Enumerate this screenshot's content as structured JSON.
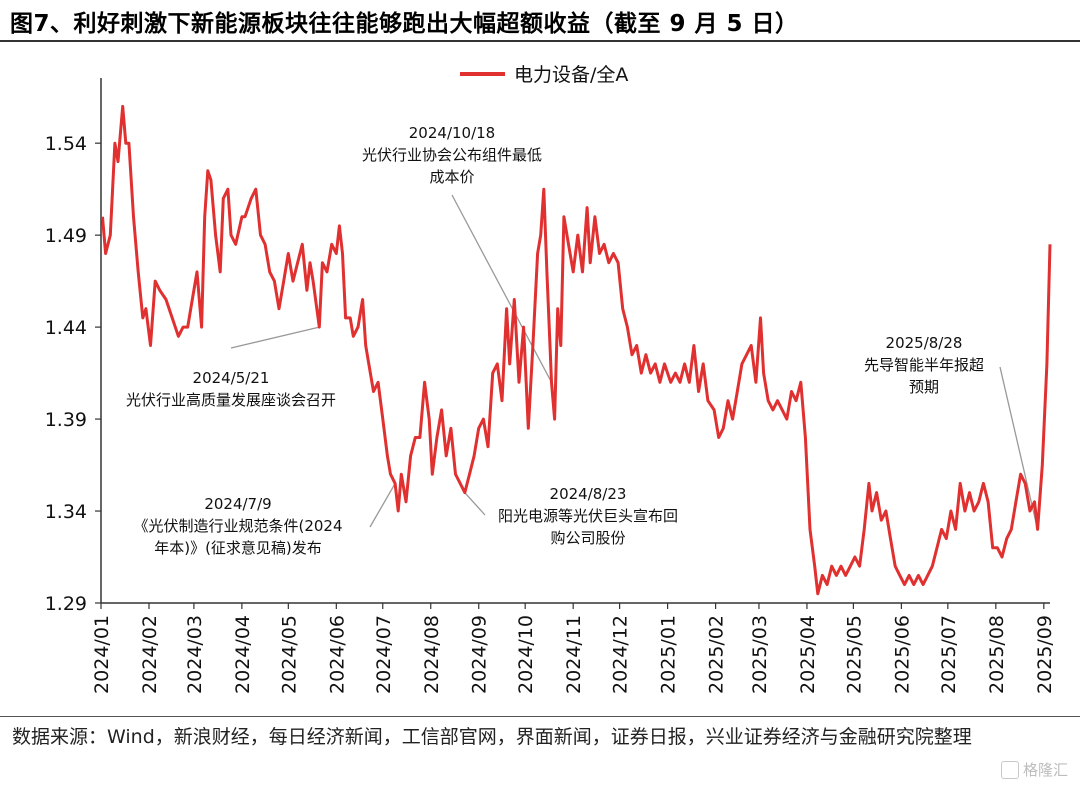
{
  "title": "图7、利好刺激下新能源板块往往能够跑出大幅超额收益（截至 9 月 5 日）",
  "source": "数据来源：Wind，新浪财经，每日经济新闻，工信部官网，界面新闻，证券日报，兴业证券经济与金融研究院整理",
  "watermark": "格隆汇",
  "chart_data": {
    "type": "line",
    "series": [
      {
        "name": "电力设备/全A",
        "color": "#e03030",
        "points": [
          [
            "2024-01-02",
            1.5
          ],
          [
            "2024-01-04",
            1.48
          ],
          [
            "2024-01-07",
            1.49
          ],
          [
            "2024-01-10",
            1.54
          ],
          [
            "2024-01-12",
            1.53
          ],
          [
            "2024-01-15",
            1.56
          ],
          [
            "2024-01-17",
            1.54
          ],
          [
            "2024-01-19",
            1.54
          ],
          [
            "2024-01-22",
            1.5
          ],
          [
            "2024-01-25",
            1.47
          ],
          [
            "2024-01-28",
            1.445
          ],
          [
            "2024-01-30",
            1.45
          ],
          [
            "2024-02-02",
            1.43
          ],
          [
            "2024-02-05",
            1.465
          ],
          [
            "2024-02-08",
            1.46
          ],
          [
            "2024-02-12",
            1.455
          ],
          [
            "2024-02-16",
            1.445
          ],
          [
            "2024-02-20",
            1.435
          ],
          [
            "2024-02-23",
            1.44
          ],
          [
            "2024-02-26",
            1.44
          ],
          [
            "2024-02-29",
            1.455
          ],
          [
            "2024-03-03",
            1.47
          ],
          [
            "2024-03-06",
            1.44
          ],
          [
            "2024-03-08",
            1.5
          ],
          [
            "2024-03-10",
            1.525
          ],
          [
            "2024-03-12",
            1.52
          ],
          [
            "2024-03-15",
            1.49
          ],
          [
            "2024-03-18",
            1.47
          ],
          [
            "2024-03-20",
            1.51
          ],
          [
            "2024-03-23",
            1.515
          ],
          [
            "2024-03-25",
            1.49
          ],
          [
            "2024-03-28",
            1.485
          ],
          [
            "2024-04-01",
            1.5
          ],
          [
            "2024-04-03",
            1.5
          ],
          [
            "2024-04-07",
            1.51
          ],
          [
            "2024-04-10",
            1.515
          ],
          [
            "2024-04-13",
            1.49
          ],
          [
            "2024-04-16",
            1.485
          ],
          [
            "2024-04-19",
            1.47
          ],
          [
            "2024-04-22",
            1.465
          ],
          [
            "2024-04-25",
            1.45
          ],
          [
            "2024-04-28",
            1.465
          ],
          [
            "2024-05-01",
            1.48
          ],
          [
            "2024-05-04",
            1.465
          ],
          [
            "2024-05-07",
            1.475
          ],
          [
            "2024-05-10",
            1.485
          ],
          [
            "2024-05-13",
            1.46
          ],
          [
            "2024-05-15",
            1.475
          ],
          [
            "2024-05-17",
            1.465
          ],
          [
            "2024-05-21",
            1.44
          ],
          [
            "2024-05-23",
            1.475
          ],
          [
            "2024-05-26",
            1.47
          ],
          [
            "2024-05-29",
            1.485
          ],
          [
            "2024-06-01",
            1.48
          ],
          [
            "2024-06-03",
            1.495
          ],
          [
            "2024-06-05",
            1.48
          ],
          [
            "2024-06-07",
            1.445
          ],
          [
            "2024-06-10",
            1.445
          ],
          [
            "2024-06-12",
            1.435
          ],
          [
            "2024-06-15",
            1.44
          ],
          [
            "2024-06-18",
            1.455
          ],
          [
            "2024-06-20",
            1.43
          ],
          [
            "2024-06-22",
            1.42
          ],
          [
            "2024-06-25",
            1.405
          ],
          [
            "2024-06-28",
            1.41
          ],
          [
            "2024-07-01",
            1.39
          ],
          [
            "2024-07-04",
            1.37
          ],
          [
            "2024-07-06",
            1.36
          ],
          [
            "2024-07-09",
            1.355
          ],
          [
            "2024-07-11",
            1.34
          ],
          [
            "2024-07-13",
            1.36
          ],
          [
            "2024-07-16",
            1.345
          ],
          [
            "2024-07-19",
            1.37
          ],
          [
            "2024-07-22",
            1.38
          ],
          [
            "2024-07-25",
            1.38
          ],
          [
            "2024-07-28",
            1.41
          ],
          [
            "2024-07-31",
            1.39
          ],
          [
            "2024-08-02",
            1.36
          ],
          [
            "2024-08-05",
            1.38
          ],
          [
            "2024-08-08",
            1.395
          ],
          [
            "2024-08-11",
            1.37
          ],
          [
            "2024-08-14",
            1.385
          ],
          [
            "2024-08-17",
            1.36
          ],
          [
            "2024-08-20",
            1.355
          ],
          [
            "2024-08-23",
            1.35
          ],
          [
            "2024-08-26",
            1.36
          ],
          [
            "2024-08-29",
            1.37
          ],
          [
            "2024-09-01",
            1.385
          ],
          [
            "2024-09-04",
            1.39
          ],
          [
            "2024-09-07",
            1.375
          ],
          [
            "2024-09-10",
            1.415
          ],
          [
            "2024-09-13",
            1.42
          ],
          [
            "2024-09-16",
            1.4
          ],
          [
            "2024-09-19",
            1.45
          ],
          [
            "2024-09-21",
            1.42
          ],
          [
            "2024-09-24",
            1.455
          ],
          [
            "2024-09-27",
            1.41
          ],
          [
            "2024-09-30",
            1.44
          ],
          [
            "2024-10-03",
            1.385
          ],
          [
            "2024-10-06",
            1.43
          ],
          [
            "2024-10-09",
            1.48
          ],
          [
            "2024-10-11",
            1.49
          ],
          [
            "2024-10-13",
            1.515
          ],
          [
            "2024-10-15",
            1.47
          ],
          [
            "2024-10-17",
            1.43
          ],
          [
            "2024-10-18",
            1.41
          ],
          [
            "2024-10-20",
            1.39
          ],
          [
            "2024-10-22",
            1.45
          ],
          [
            "2024-10-24",
            1.43
          ],
          [
            "2024-10-26",
            1.5
          ],
          [
            "2024-10-29",
            1.485
          ],
          [
            "2024-11-01",
            1.47
          ],
          [
            "2024-11-04",
            1.49
          ],
          [
            "2024-11-07",
            1.47
          ],
          [
            "2024-11-10",
            1.505
          ],
          [
            "2024-11-12",
            1.475
          ],
          [
            "2024-11-15",
            1.5
          ],
          [
            "2024-11-18",
            1.48
          ],
          [
            "2024-11-21",
            1.485
          ],
          [
            "2024-11-24",
            1.475
          ],
          [
            "2024-11-27",
            1.48
          ],
          [
            "2024-11-30",
            1.475
          ],
          [
            "2024-12-03",
            1.45
          ],
          [
            "2024-12-06",
            1.44
          ],
          [
            "2024-12-09",
            1.425
          ],
          [
            "2024-12-12",
            1.43
          ],
          [
            "2024-12-15",
            1.415
          ],
          [
            "2024-12-18",
            1.425
          ],
          [
            "2024-12-21",
            1.415
          ],
          [
            "2024-12-24",
            1.42
          ],
          [
            "2024-12-27",
            1.41
          ],
          [
            "2024-12-30",
            1.42
          ],
          [
            "2025-01-03",
            1.41
          ],
          [
            "2025-01-06",
            1.415
          ],
          [
            "2025-01-09",
            1.41
          ],
          [
            "2025-01-12",
            1.42
          ],
          [
            "2025-01-15",
            1.41
          ],
          [
            "2025-01-18",
            1.43
          ],
          [
            "2025-01-21",
            1.405
          ],
          [
            "2025-01-24",
            1.42
          ],
          [
            "2025-01-27",
            1.4
          ],
          [
            "2025-01-31",
            1.395
          ],
          [
            "2025-02-03",
            1.38
          ],
          [
            "2025-02-06",
            1.385
          ],
          [
            "2025-02-09",
            1.4
          ],
          [
            "2025-02-12",
            1.39
          ],
          [
            "2025-02-15",
            1.405
          ],
          [
            "2025-02-18",
            1.42
          ],
          [
            "2025-02-21",
            1.425
          ],
          [
            "2025-02-24",
            1.43
          ],
          [
            "2025-02-27",
            1.41
          ],
          [
            "2025-03-02",
            1.445
          ],
          [
            "2025-03-04",
            1.415
          ],
          [
            "2025-03-07",
            1.4
          ],
          [
            "2025-03-10",
            1.395
          ],
          [
            "2025-03-13",
            1.4
          ],
          [
            "2025-03-16",
            1.395
          ],
          [
            "2025-03-19",
            1.39
          ],
          [
            "2025-03-22",
            1.405
          ],
          [
            "2025-03-25",
            1.4
          ],
          [
            "2025-03-28",
            1.41
          ],
          [
            "2025-03-31",
            1.38
          ],
          [
            "2025-04-03",
            1.33
          ],
          [
            "2025-04-06",
            1.31
          ],
          [
            "2025-04-08",
            1.295
          ],
          [
            "2025-04-11",
            1.305
          ],
          [
            "2025-04-14",
            1.3
          ],
          [
            "2025-04-17",
            1.31
          ],
          [
            "2025-04-20",
            1.305
          ],
          [
            "2025-04-23",
            1.31
          ],
          [
            "2025-04-26",
            1.305
          ],
          [
            "2025-04-29",
            1.31
          ],
          [
            "2025-05-02",
            1.315
          ],
          [
            "2025-05-05",
            1.31
          ],
          [
            "2025-05-08",
            1.33
          ],
          [
            "2025-05-11",
            1.355
          ],
          [
            "2025-05-13",
            1.34
          ],
          [
            "2025-05-16",
            1.35
          ],
          [
            "2025-05-19",
            1.335
          ],
          [
            "2025-05-22",
            1.34
          ],
          [
            "2025-05-25",
            1.325
          ],
          [
            "2025-05-28",
            1.31
          ],
          [
            "2025-05-31",
            1.305
          ],
          [
            "2025-06-03",
            1.3
          ],
          [
            "2025-06-06",
            1.305
          ],
          [
            "2025-06-09",
            1.3
          ],
          [
            "2025-06-12",
            1.305
          ],
          [
            "2025-06-15",
            1.3
          ],
          [
            "2025-06-18",
            1.305
          ],
          [
            "2025-06-21",
            1.31
          ],
          [
            "2025-06-24",
            1.32
          ],
          [
            "2025-06-27",
            1.33
          ],
          [
            "2025-06-30",
            1.325
          ],
          [
            "2025-07-03",
            1.34
          ],
          [
            "2025-07-06",
            1.33
          ],
          [
            "2025-07-09",
            1.355
          ],
          [
            "2025-07-12",
            1.34
          ],
          [
            "2025-07-15",
            1.35
          ],
          [
            "2025-07-18",
            1.34
          ],
          [
            "2025-07-21",
            1.345
          ],
          [
            "2025-07-24",
            1.355
          ],
          [
            "2025-07-27",
            1.345
          ],
          [
            "2025-07-30",
            1.32
          ],
          [
            "2025-08-02",
            1.32
          ],
          [
            "2025-08-05",
            1.315
          ],
          [
            "2025-08-08",
            1.325
          ],
          [
            "2025-08-11",
            1.33
          ],
          [
            "2025-08-14",
            1.345
          ],
          [
            "2025-08-17",
            1.36
          ],
          [
            "2025-08-20",
            1.355
          ],
          [
            "2025-08-23",
            1.34
          ],
          [
            "2025-08-26",
            1.345
          ],
          [
            "2025-08-28",
            1.33
          ],
          [
            "2025-08-31",
            1.365
          ],
          [
            "2025-09-03",
            1.42
          ],
          [
            "2025-09-05",
            1.485
          ]
        ]
      }
    ],
    "x_tick_labels": [
      "2024/01",
      "2024/02",
      "2024/03",
      "2024/04",
      "2024/05",
      "2024/06",
      "2024/07",
      "2024/08",
      "2024/09",
      "2024/10",
      "2024/11",
      "2024/12",
      "2025/01",
      "2025/02",
      "2025/03",
      "2025/04",
      "2025/05",
      "2025/06",
      "2025/07",
      "2025/08",
      "2025/09"
    ],
    "x_tick_dates": [
      "2024-01-01",
      "2024-02-01",
      "2024-03-01",
      "2024-04-01",
      "2024-05-01",
      "2024-06-01",
      "2024-07-01",
      "2024-08-01",
      "2024-09-01",
      "2024-10-01",
      "2024-11-01",
      "2024-12-01",
      "2025-01-01",
      "2025-02-01",
      "2025-03-01",
      "2025-04-01",
      "2025-05-01",
      "2025-06-01",
      "2025-07-01",
      "2025-08-01",
      "2025-09-01"
    ],
    "x_range": [
      "2024-01-01",
      "2025-09-05"
    ],
    "y_ticks": [
      1.29,
      1.34,
      1.39,
      1.44,
      1.49,
      1.54
    ],
    "y_tick_labels": [
      "1.29",
      "1.34",
      "1.39",
      "1.44",
      "1.49",
      "1.54"
    ],
    "ylim": [
      1.29,
      1.57
    ],
    "grid": false,
    "legend_position": "top-center",
    "annotations": [
      {
        "id": "ann-2024-05-21",
        "lines": [
          "2024/5/21",
          "光伏行业高质量发展座谈会召开"
        ],
        "date": "2024-05-21",
        "value": 1.44
      },
      {
        "id": "ann-2024-07-09",
        "lines": [
          "2024/7/9",
          "《光伏制造行业规范条件(2024",
          "年本)》(征求意见稿)发布"
        ],
        "date": "2024-07-09",
        "value": 1.355
      },
      {
        "id": "ann-2024-08-23",
        "lines": [
          "2024/8/23",
          "阳光电源等光伏巨头宣布回",
          "购公司股份"
        ],
        "date": "2024-08-23",
        "value": 1.35
      },
      {
        "id": "ann-2024-10-18",
        "lines": [
          "2024/10/18",
          "光伏行业协会公布组件最低",
          "成本价"
        ],
        "date": "2024-10-18",
        "value": 1.41
      },
      {
        "id": "ann-2025-08-28",
        "lines": [
          "2025/8/28",
          "先导智能半年报超",
          "预期"
        ],
        "date": "2025-08-28",
        "value": 1.33
      }
    ]
  }
}
